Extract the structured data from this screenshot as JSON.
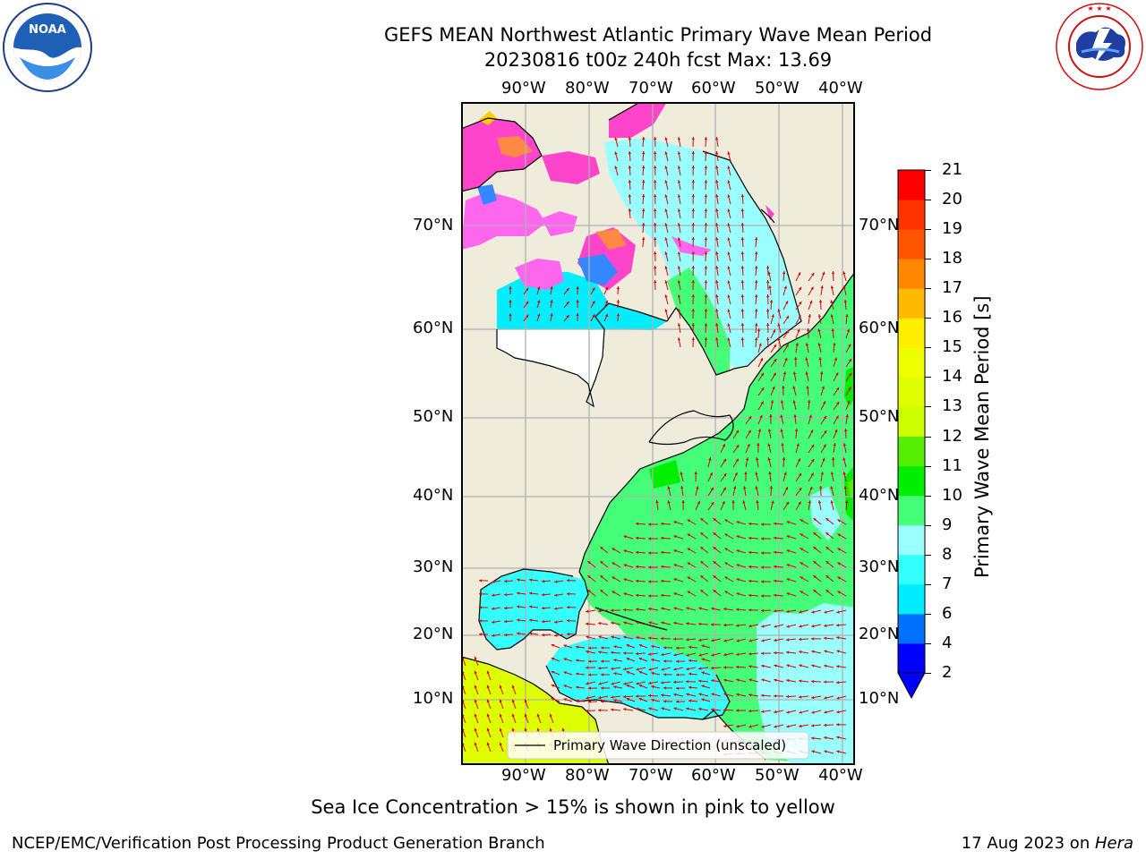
{
  "header": {
    "title_line1": "GEFS MEAN Northwest Atlantic Primary Wave Mean Period",
    "title_line2": "20230816 t00z 240h fcst   Max: 13.69"
  },
  "logos": {
    "noaa_text": "NOAA",
    "noaa_ring_text": "NATIONAL OCEANIC AND ATMOSPHERIC ADMINISTRATION · U.S. DEPARTMENT OF COMMERCE",
    "nws_ring_text": "NATIONAL WEATHER SERVICE"
  },
  "map": {
    "lon_labels": [
      "90°W",
      "80°W",
      "70°W",
      "60°W",
      "50°W",
      "40°W"
    ],
    "lat_labels": [
      "70°N",
      "60°N",
      "50°N",
      "40°N",
      "30°N",
      "20°N",
      "10°N"
    ],
    "legend_label": "Primary Wave Direction (unscaled)",
    "colors": {
      "land": "#efecdc",
      "grid": "#b0b0b0",
      "arrow": "#dd0000",
      "coast": "#000000"
    }
  },
  "colorbar": {
    "title": "Primary Wave Mean Period [s]",
    "ticks": [
      "2",
      "4",
      "6",
      "7",
      "8",
      "9",
      "10",
      "11",
      "12",
      "13",
      "14",
      "15",
      "16",
      "17",
      "18",
      "19",
      "20",
      "21"
    ],
    "colors": [
      "#0000ff",
      "#0070ff",
      "#00eeff",
      "#33ffff",
      "#99ffff",
      "#44ff77",
      "#00ee00",
      "#55ee00",
      "#ccff00",
      "#ddff00",
      "#eeff00",
      "#ffee00",
      "#ffbb00",
      "#ff8800",
      "#ff5500",
      "#ff3300",
      "#ff0000"
    ],
    "extend": "min"
  },
  "notes": {
    "sea_ice": "Sea Ice Concentration > 15% is shown in pink to yellow"
  },
  "footer": {
    "left": "NCEP/EMC/Verification Post Processing Product Generation Branch",
    "date": "17 Aug 2023 on ",
    "machine": "Hera"
  }
}
